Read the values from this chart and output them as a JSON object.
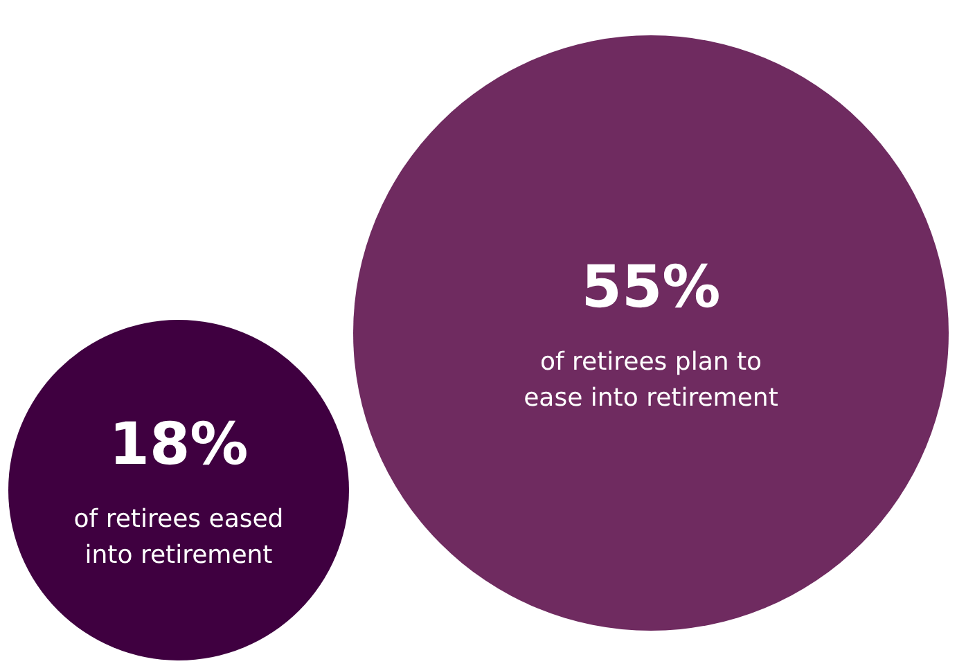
{
  "chart_data": {
    "type": "other",
    "categories": [
      "of retirees eased into retirement",
      "of retirees plan to ease into retirement"
    ],
    "values": [
      18,
      55
    ],
    "colors": [
      "#3f0040",
      "#6f2b60"
    ],
    "value_labels": [
      "18%",
      "55%"
    ]
  }
}
